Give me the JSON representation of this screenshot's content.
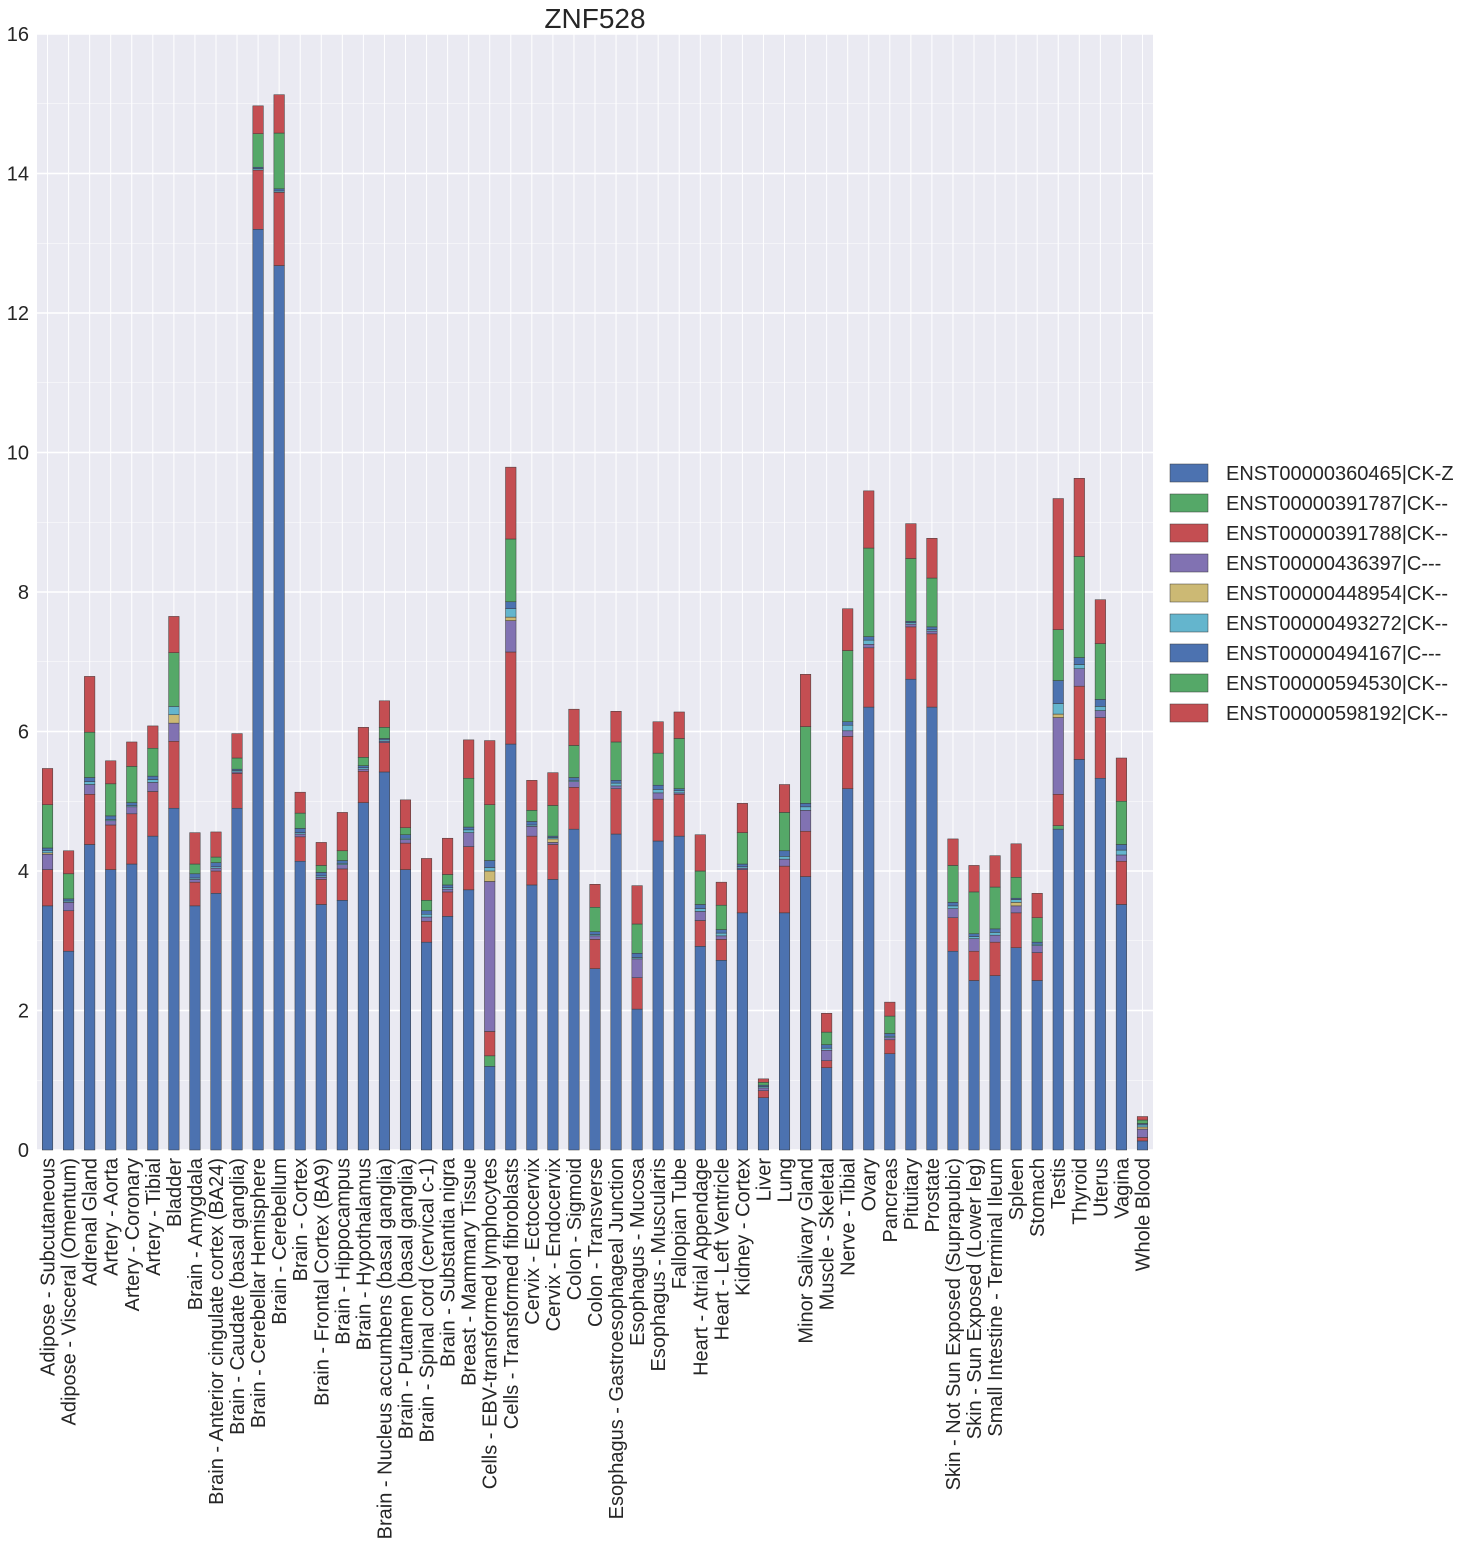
{
  "chart_data": {
    "type": "bar",
    "stacked": true,
    "title": "ZNF528",
    "xlabel": "",
    "ylabel": "",
    "ylim": [
      0,
      16
    ],
    "yticks": [
      "0",
      "2",
      "4",
      "6",
      "8",
      "10",
      "12",
      "14",
      "16"
    ],
    "grid": true,
    "legend_position": "right",
    "categories": [
      "Adipose - Subcutaneous",
      "Adipose - Visceral (Omentum)",
      "Adrenal Gland",
      "Artery - Aorta",
      "Artery - Coronary",
      "Artery - Tibial",
      "Bladder",
      "Brain - Amygdala",
      "Brain - Anterior cingulate cortex (BA24)",
      "Brain - Caudate (basal ganglia)",
      "Brain - Cerebellar Hemisphere",
      "Brain - Cerebellum",
      "Brain - Cortex",
      "Brain - Frontal Cortex (BA9)",
      "Brain - Hippocampus",
      "Brain - Hypothalamus",
      "Brain - Nucleus accumbens (basal ganglia)",
      "Brain - Putamen (basal ganglia)",
      "Brain - Spinal cord (cervical c-1)",
      "Brain - Substantia nigra",
      "Breast - Mammary Tissue",
      "Cells - EBV-transformed lymphocytes",
      "Cells - Transformed fibroblasts",
      "Cervix - Ectocervix",
      "Cervix - Endocervix",
      "Colon - Sigmoid",
      "Colon - Transverse",
      "Esophagus - Gastroesophageal Junction",
      "Esophagus - Mucosa",
      "Esophagus - Muscularis",
      "Fallopian Tube",
      "Heart - Atrial Appendage",
      "Heart - Left Ventricle",
      "Kidney - Cortex",
      "Liver",
      "Lung",
      "Minor Salivary Gland",
      "Muscle - Skeletal",
      "Nerve - Tibial",
      "Ovary",
      "Pancreas",
      "Pituitary",
      "Prostate",
      "Skin - Not Sun Exposed (Suprapubic)",
      "Skin - Sun Exposed (Lower leg)",
      "Small Intestine - Terminal Ileum",
      "Spleen",
      "Stomach",
      "Testis",
      "Thyroid",
      "Uterus",
      "Vagina",
      "Whole Blood"
    ],
    "series": [
      {
        "name": "ENST00000360465|CK-Z",
        "color": "#4c72b0",
        "values": [
          3.5,
          2.85,
          4.38,
          4.02,
          4.1,
          4.5,
          4.9,
          3.5,
          3.68,
          4.9,
          13.2,
          12.68,
          4.14,
          3.52,
          3.58,
          4.98,
          5.42,
          4.02,
          2.98,
          3.35,
          3.73,
          1.2,
          5.82,
          3.8,
          3.88,
          4.6,
          2.6,
          4.53,
          2.02,
          4.43,
          4.5,
          2.92,
          2.72,
          3.4,
          0.75,
          3.4,
          3.92,
          1.18,
          5.18,
          6.35,
          1.38,
          6.75,
          6.35,
          2.85,
          2.43,
          2.5,
          2.9,
          2.43,
          4.6,
          5.6,
          5.33,
          3.52,
          0.13
        ]
      },
      {
        "name": "ENST00000391787|CK--",
        "color": "#55a868",
        "values": [
          0.0,
          0.0,
          0.0,
          0.0,
          0.0,
          0.0,
          0.0,
          0.0,
          0.0,
          0.0,
          0.0,
          0.0,
          0.0,
          0.0,
          0.0,
          0.0,
          0.0,
          0.0,
          0.0,
          0.0,
          0.0,
          0.15,
          0.0,
          0.0,
          0.0,
          0.0,
          0.0,
          0.0,
          0.0,
          0.0,
          0.0,
          0.0,
          0.0,
          0.0,
          0.0,
          0.0,
          0.0,
          0.0,
          0.0,
          0.0,
          0.0,
          0.0,
          0.0,
          0.0,
          0.0,
          0.0,
          0.0,
          0.0,
          0.05,
          0.0,
          0.0,
          0.0,
          0.0
        ]
      },
      {
        "name": "ENST00000391788|CK--",
        "color": "#c44e52",
        "values": [
          0.52,
          0.58,
          0.72,
          0.64,
          0.72,
          0.64,
          0.96,
          0.34,
          0.32,
          0.5,
          0.85,
          1.05,
          0.35,
          0.36,
          0.45,
          0.45,
          0.42,
          0.38,
          0.3,
          0.35,
          0.62,
          0.35,
          1.32,
          0.7,
          0.5,
          0.6,
          0.42,
          0.65,
          0.45,
          0.6,
          0.6,
          0.37,
          0.3,
          0.62,
          0.1,
          0.67,
          0.65,
          0.1,
          0.75,
          0.85,
          0.2,
          0.75,
          1.05,
          0.48,
          0.42,
          0.48,
          0.5,
          0.4,
          0.45,
          1.05,
          0.87,
          0.62,
          0.05
        ]
      },
      {
        "name": "ENST00000436397|C---",
        "color": "#8172b2",
        "values": [
          0.22,
          0.12,
          0.14,
          0.06,
          0.1,
          0.13,
          0.26,
          0.04,
          0.04,
          0.02,
          0.0,
          0.0,
          0.04,
          0.03,
          0.06,
          0.03,
          0.02,
          0.05,
          0.06,
          0.04,
          0.2,
          2.15,
          0.45,
          0.14,
          0.03,
          0.08,
          0.05,
          0.04,
          0.27,
          0.09,
          0.02,
          0.13,
          0.05,
          0.02,
          0.04,
          0.1,
          0.3,
          0.15,
          0.08,
          0.05,
          0.03,
          0.04,
          0.04,
          0.13,
          0.18,
          0.1,
          0.1,
          0.1,
          1.1,
          0.25,
          0.1,
          0.09,
          0.12
        ]
      },
      {
        "name": "ENST00000448954|CK--",
        "color": "#ccb974",
        "values": [
          0.02,
          0.0,
          0.0,
          0.0,
          0.0,
          0.0,
          0.12,
          0.0,
          0.0,
          0.0,
          0.0,
          0.0,
          0.0,
          0.0,
          0.0,
          0.0,
          0.0,
          0.0,
          0.0,
          0.0,
          0.0,
          0.15,
          0.05,
          0.0,
          0.05,
          0.0,
          0.0,
          0.0,
          0.0,
          0.0,
          0.0,
          0.0,
          0.0,
          0.0,
          0.0,
          0.0,
          0.0,
          0.0,
          0.0,
          0.0,
          0.0,
          0.0,
          0.0,
          0.0,
          0.0,
          0.0,
          0.05,
          0.0,
          0.05,
          0.0,
          0.0,
          0.0,
          0.03
        ]
      },
      {
        "name": "ENST00000493272|CK--",
        "color": "#64b5cd",
        "values": [
          0.03,
          0.02,
          0.04,
          0.02,
          0.02,
          0.04,
          0.12,
          0.02,
          0.02,
          0.02,
          0.02,
          0.02,
          0.02,
          0.02,
          0.02,
          0.02,
          0.02,
          0.02,
          0.04,
          0.02,
          0.04,
          0.05,
          0.12,
          0.02,
          0.02,
          0.02,
          0.02,
          0.04,
          0.02,
          0.05,
          0.03,
          0.04,
          0.04,
          0.02,
          0.02,
          0.04,
          0.05,
          0.03,
          0.08,
          0.06,
          0.02,
          0.02,
          0.02,
          0.04,
          0.03,
          0.04,
          0.04,
          0.02,
          0.15,
          0.06,
          0.06,
          0.07,
          0.03
        ]
      },
      {
        "name": "ENST00000494167|C---",
        "color": "#4c72b0",
        "values": [
          0.04,
          0.03,
          0.06,
          0.05,
          0.04,
          0.05,
          0.0,
          0.06,
          0.06,
          0.02,
          0.02,
          0.03,
          0.06,
          0.05,
          0.04,
          0.03,
          0.02,
          0.05,
          0.05,
          0.04,
          0.04,
          0.1,
          0.1,
          0.05,
          0.02,
          0.04,
          0.04,
          0.04,
          0.06,
          0.06,
          0.03,
          0.06,
          0.05,
          0.04,
          0.02,
          0.08,
          0.05,
          0.05,
          0.05,
          0.05,
          0.04,
          0.02,
          0.04,
          0.05,
          0.04,
          0.05,
          0.02,
          0.03,
          0.33,
          0.1,
          0.1,
          0.08,
          0.02
        ]
      },
      {
        "name": "ENST00000594530|CK--",
        "color": "#55a868",
        "values": [
          0.62,
          0.36,
          0.65,
          0.46,
          0.52,
          0.4,
          0.77,
          0.14,
          0.08,
          0.16,
          0.48,
          0.8,
          0.22,
          0.1,
          0.14,
          0.12,
          0.16,
          0.1,
          0.15,
          0.15,
          0.7,
          0.8,
          0.9,
          0.16,
          0.44,
          0.46,
          0.35,
          0.55,
          0.42,
          0.46,
          0.72,
          0.48,
          0.35,
          0.45,
          0.04,
          0.55,
          1.1,
          0.18,
          1.02,
          1.27,
          0.25,
          0.9,
          0.7,
          0.53,
          0.6,
          0.6,
          0.3,
          0.35,
          0.73,
          1.45,
          0.8,
          0.62,
          0.05
        ]
      },
      {
        "name": "ENST00000598192|CK--",
        "color": "#c44e52",
        "values": [
          0.52,
          0.33,
          0.8,
          0.33,
          0.35,
          0.32,
          0.52,
          0.45,
          0.36,
          0.35,
          0.4,
          0.55,
          0.3,
          0.33,
          0.55,
          0.43,
          0.38,
          0.4,
          0.6,
          0.52,
          0.55,
          0.92,
          1.03,
          0.43,
          0.47,
          0.52,
          0.33,
          0.44,
          0.55,
          0.45,
          0.38,
          0.52,
          0.33,
          0.42,
          0.05,
          0.4,
          0.75,
          0.27,
          0.6,
          0.82,
          0.2,
          0.5,
          0.57,
          0.38,
          0.38,
          0.45,
          0.48,
          0.35,
          1.88,
          1.12,
          0.63,
          0.62,
          0.05
        ]
      }
    ]
  }
}
